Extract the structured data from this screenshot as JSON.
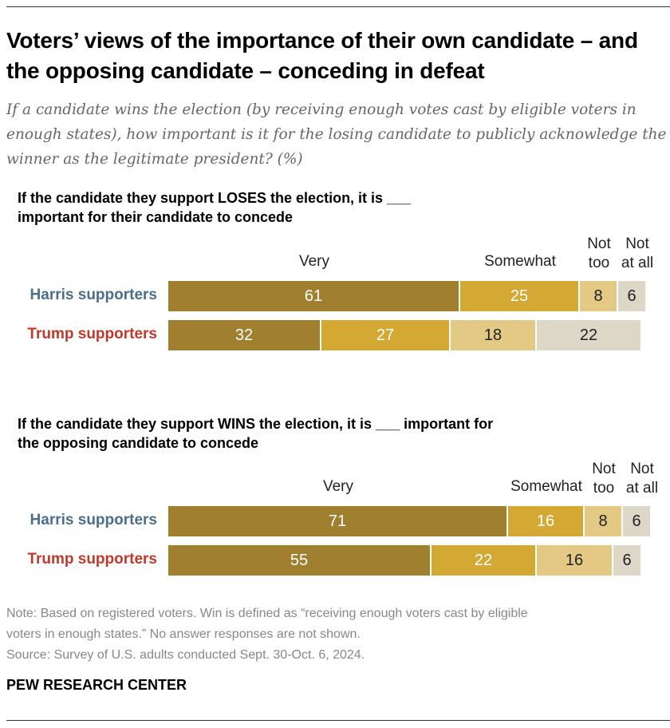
{
  "title": "Voters’ views of the importance of their own candidate – and the opposing candidate – conceding in defeat",
  "subtitle": "If a candidate wins the election (by receiving enough votes cast by eligible voters in enough states), how important is it for the losing candidate to publicly acknowledge the winner as the legitimate president? (%)",
  "colors": {
    "very": "#a07f2f",
    "somewhat": "#d3a934",
    "not_too": "#e3c983",
    "not_at_all": "#dcd7c6",
    "harris": "#4a6e8c",
    "trump": "#c0392b"
  },
  "chart_data": [
    {
      "type": "bar",
      "orientation": "horizontal",
      "stacked": true,
      "title": "If the candidate they support LOSES the election, it is ___ important for their candidate to concede",
      "categories": [
        "Harris supporters",
        "Trump supporters"
      ],
      "series": [
        {
          "name": "Very",
          "values": [
            61,
            32
          ]
        },
        {
          "name": "Somewhat",
          "values": [
            25,
            27
          ]
        },
        {
          "name": "Not too",
          "values": [
            8,
            18
          ]
        },
        {
          "name": "Not at all",
          "values": [
            6,
            22
          ]
        }
      ],
      "xlim": [
        0,
        100
      ]
    },
    {
      "type": "bar",
      "orientation": "horizontal",
      "stacked": true,
      "title": "If the candidate they support WINS the election, it is ___ important for the opposing candidate to concede",
      "categories": [
        "Harris supporters",
        "Trump supporters"
      ],
      "series": [
        {
          "name": "Very",
          "values": [
            71,
            55
          ]
        },
        {
          "name": "Somewhat",
          "values": [
            16,
            22
          ]
        },
        {
          "name": "Not too",
          "values": [
            8,
            16
          ]
        },
        {
          "name": "Not at all",
          "values": [
            6,
            6
          ]
        }
      ],
      "xlim": [
        0,
        100
      ]
    }
  ],
  "notes": [
    "Note: Based on registered voters. Win is defined as “receiving enough voters cast by eligible",
    "voters in enough states.” No answer responses are not shown.",
    "Source: Survey of U.S. adults conducted Sept. 30-Oct. 6, 2024."
  ],
  "brand": "PEW RESEARCH CENTER"
}
